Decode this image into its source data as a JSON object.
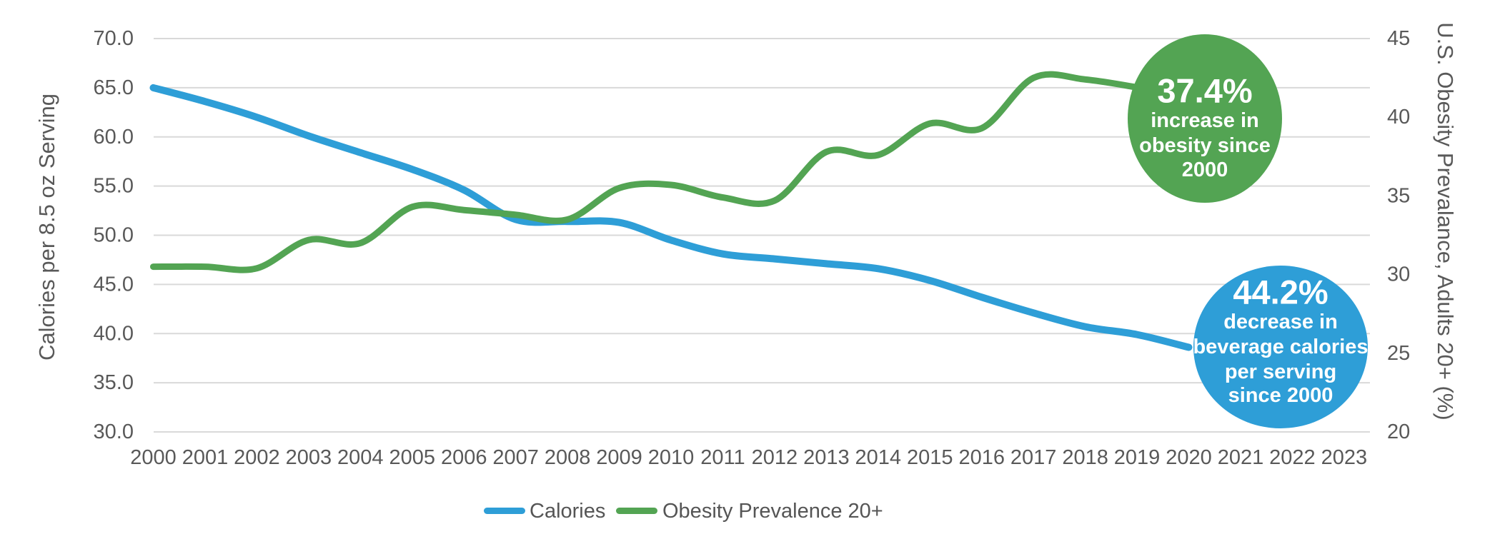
{
  "chart_data": {
    "type": "line",
    "title": "",
    "categories": [
      "2000",
      "2001",
      "2002",
      "2003",
      "2004",
      "2005",
      "2006",
      "2007",
      "2008",
      "2009",
      "2010",
      "2011",
      "2012",
      "2013",
      "2014",
      "2015",
      "2016",
      "2017",
      "2018",
      "2019",
      "2020",
      "2021",
      "2022",
      "2023"
    ],
    "series": [
      {
        "name": "Calories",
        "axis": "left",
        "color": "#2E9ED7",
        "stroke_width": 10,
        "values": [
          65.0,
          63.6,
          62.0,
          60.1,
          58.4,
          56.7,
          54.6,
          51.6,
          51.4,
          51.3,
          49.5,
          48.1,
          47.6,
          47.1,
          46.6,
          45.4,
          43.7,
          42.1,
          40.7,
          39.9,
          38.6,
          null,
          null,
          null
        ],
        "note": "line hidden behind callout circle after 2020"
      },
      {
        "name": "Obesity Prevalence 20+",
        "axis": "right",
        "color": "#53A453",
        "stroke_width": 9,
        "values": [
          30.5,
          30.5,
          30.4,
          32.2,
          32.0,
          34.3,
          34.1,
          33.8,
          33.5,
          35.5,
          35.7,
          34.9,
          34.7,
          37.8,
          37.6,
          39.6,
          39.3,
          42.5,
          42.4,
          41.9,
          null,
          null,
          null,
          null
        ],
        "note": "line hidden behind callout circle after 2019"
      }
    ],
    "axes": {
      "left": {
        "title": "Calories per 8.5 oz Serving",
        "min": 30,
        "max": 70,
        "step": 5,
        "tick_labels": [
          "70.0",
          "65.0",
          "60.0",
          "55.0",
          "50.0",
          "45.0",
          "40.0",
          "35.0",
          "30.0"
        ]
      },
      "right": {
        "title": "U.S. Obesity Prevalance, Adults 20+ (%)",
        "min": 20,
        "max": 45,
        "step": 5,
        "tick_labels": [
          "45",
          "40",
          "35",
          "30",
          "25",
          "20"
        ]
      }
    },
    "grid": true,
    "legend_position": "bottom"
  },
  "legend": {
    "items": [
      {
        "label": "Calories",
        "color": "#2E9ED7"
      },
      {
        "label": "Obesity Prevalence 20+",
        "color": "#53A453"
      }
    ]
  },
  "annotations": [
    {
      "name": "obesity-callout",
      "color": "#53A453",
      "headline": "37.4%",
      "text_lines": [
        "37.4%",
        "increase in",
        "obesity since",
        "2000"
      ]
    },
    {
      "name": "calories-callout",
      "color": "#2E9ED7",
      "headline": "44.2%",
      "text_lines": [
        "44.2%",
        "decrease in",
        "beverage calories",
        "per serving",
        "since 2000"
      ]
    }
  ],
  "colors": {
    "grid": "#D9D9D9",
    "tick_text": "#595959",
    "background": "#FFFFFF"
  }
}
